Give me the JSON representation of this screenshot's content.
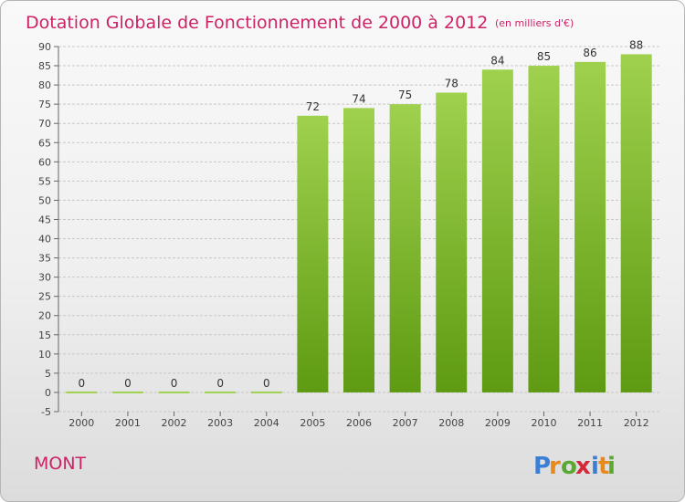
{
  "chart_data": {
    "type": "bar",
    "title": "Dotation Globale de Fonctionnement de 2000 à 2012",
    "unit": "(en milliers d'€)",
    "categories": [
      "2000",
      "2001",
      "2002",
      "2003",
      "2004",
      "2005",
      "2006",
      "2007",
      "2008",
      "2009",
      "2010",
      "2011",
      "2012"
    ],
    "values": [
      0,
      0,
      0,
      0,
      0,
      72,
      74,
      75,
      78,
      84,
      85,
      86,
      88
    ],
    "ylim": [
      -5,
      90
    ],
    "ytick_step": 5,
    "grid": true,
    "bar_color_top": "#9fd14e",
    "bar_color_bottom": "#5e9a12"
  },
  "commune_name": "MONT",
  "logo": {
    "text": "Proxiti",
    "letter_colors": [
      "#3a7fd5",
      "#e8891b",
      "#5aa832",
      "#d6283a",
      "#3a7fd5",
      "#e8891b",
      "#5aa832"
    ]
  }
}
